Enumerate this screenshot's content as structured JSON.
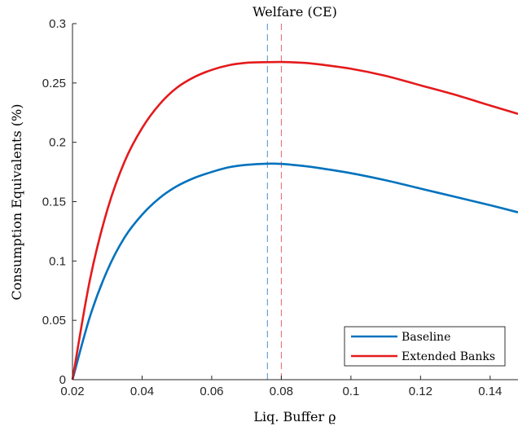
{
  "chart_data": {
    "type": "line",
    "title": "Welfare (CE)",
    "xlabel": "Liq. Buffer ϱ",
    "ylabel": "Consumption Equivalents (%)",
    "xlim": [
      0.02,
      0.148
    ],
    "ylim": [
      0,
      0.3
    ],
    "xticks": [
      0.02,
      0.04,
      0.06,
      0.08,
      0.1,
      0.12,
      0.14
    ],
    "xtick_labels": [
      "0.02",
      "0.04",
      "0.06",
      "0.08",
      "0.1",
      "0.12",
      "0.14"
    ],
    "yticks": [
      0,
      0.05,
      0.1,
      0.15,
      0.2,
      0.25,
      0.3
    ],
    "ytick_labels": [
      "0",
      "0.05",
      "0.1",
      "0.15",
      "0.2",
      "0.25",
      "0.3"
    ],
    "grid": false,
    "legend_position": "bottom-right",
    "series": [
      {
        "name": "Baseline",
        "color": "#0072BD",
        "x": [
          0.02,
          0.025,
          0.03,
          0.035,
          0.04,
          0.045,
          0.05,
          0.055,
          0.06,
          0.065,
          0.07,
          0.076,
          0.08,
          0.085,
          0.09,
          0.1,
          0.11,
          0.12,
          0.13,
          0.14,
          0.148
        ],
        "y": [
          0.0,
          0.053,
          0.092,
          0.12,
          0.139,
          0.153,
          0.163,
          0.17,
          0.175,
          0.179,
          0.181,
          0.182,
          0.1818,
          0.1805,
          0.1787,
          0.174,
          0.168,
          0.161,
          0.154,
          0.147,
          0.141
        ]
      },
      {
        "name": "Extended Banks",
        "color": "#E41A1C",
        "x": [
          0.02,
          0.025,
          0.03,
          0.035,
          0.04,
          0.045,
          0.05,
          0.055,
          0.06,
          0.065,
          0.07,
          0.075,
          0.08,
          0.085,
          0.09,
          0.1,
          0.11,
          0.12,
          0.13,
          0.14,
          0.148
        ],
        "y": [
          0.0,
          0.084,
          0.143,
          0.184,
          0.212,
          0.232,
          0.246,
          0.255,
          0.261,
          0.265,
          0.267,
          0.2675,
          0.2677,
          0.2672,
          0.266,
          0.262,
          0.256,
          0.248,
          0.24,
          0.231,
          0.224
        ]
      }
    ],
    "vlines": [
      {
        "x": 0.076,
        "color": "#4A90C8",
        "style": "dashed"
      },
      {
        "x": 0.08,
        "color": "#E8636B",
        "style": "dashed"
      }
    ]
  }
}
